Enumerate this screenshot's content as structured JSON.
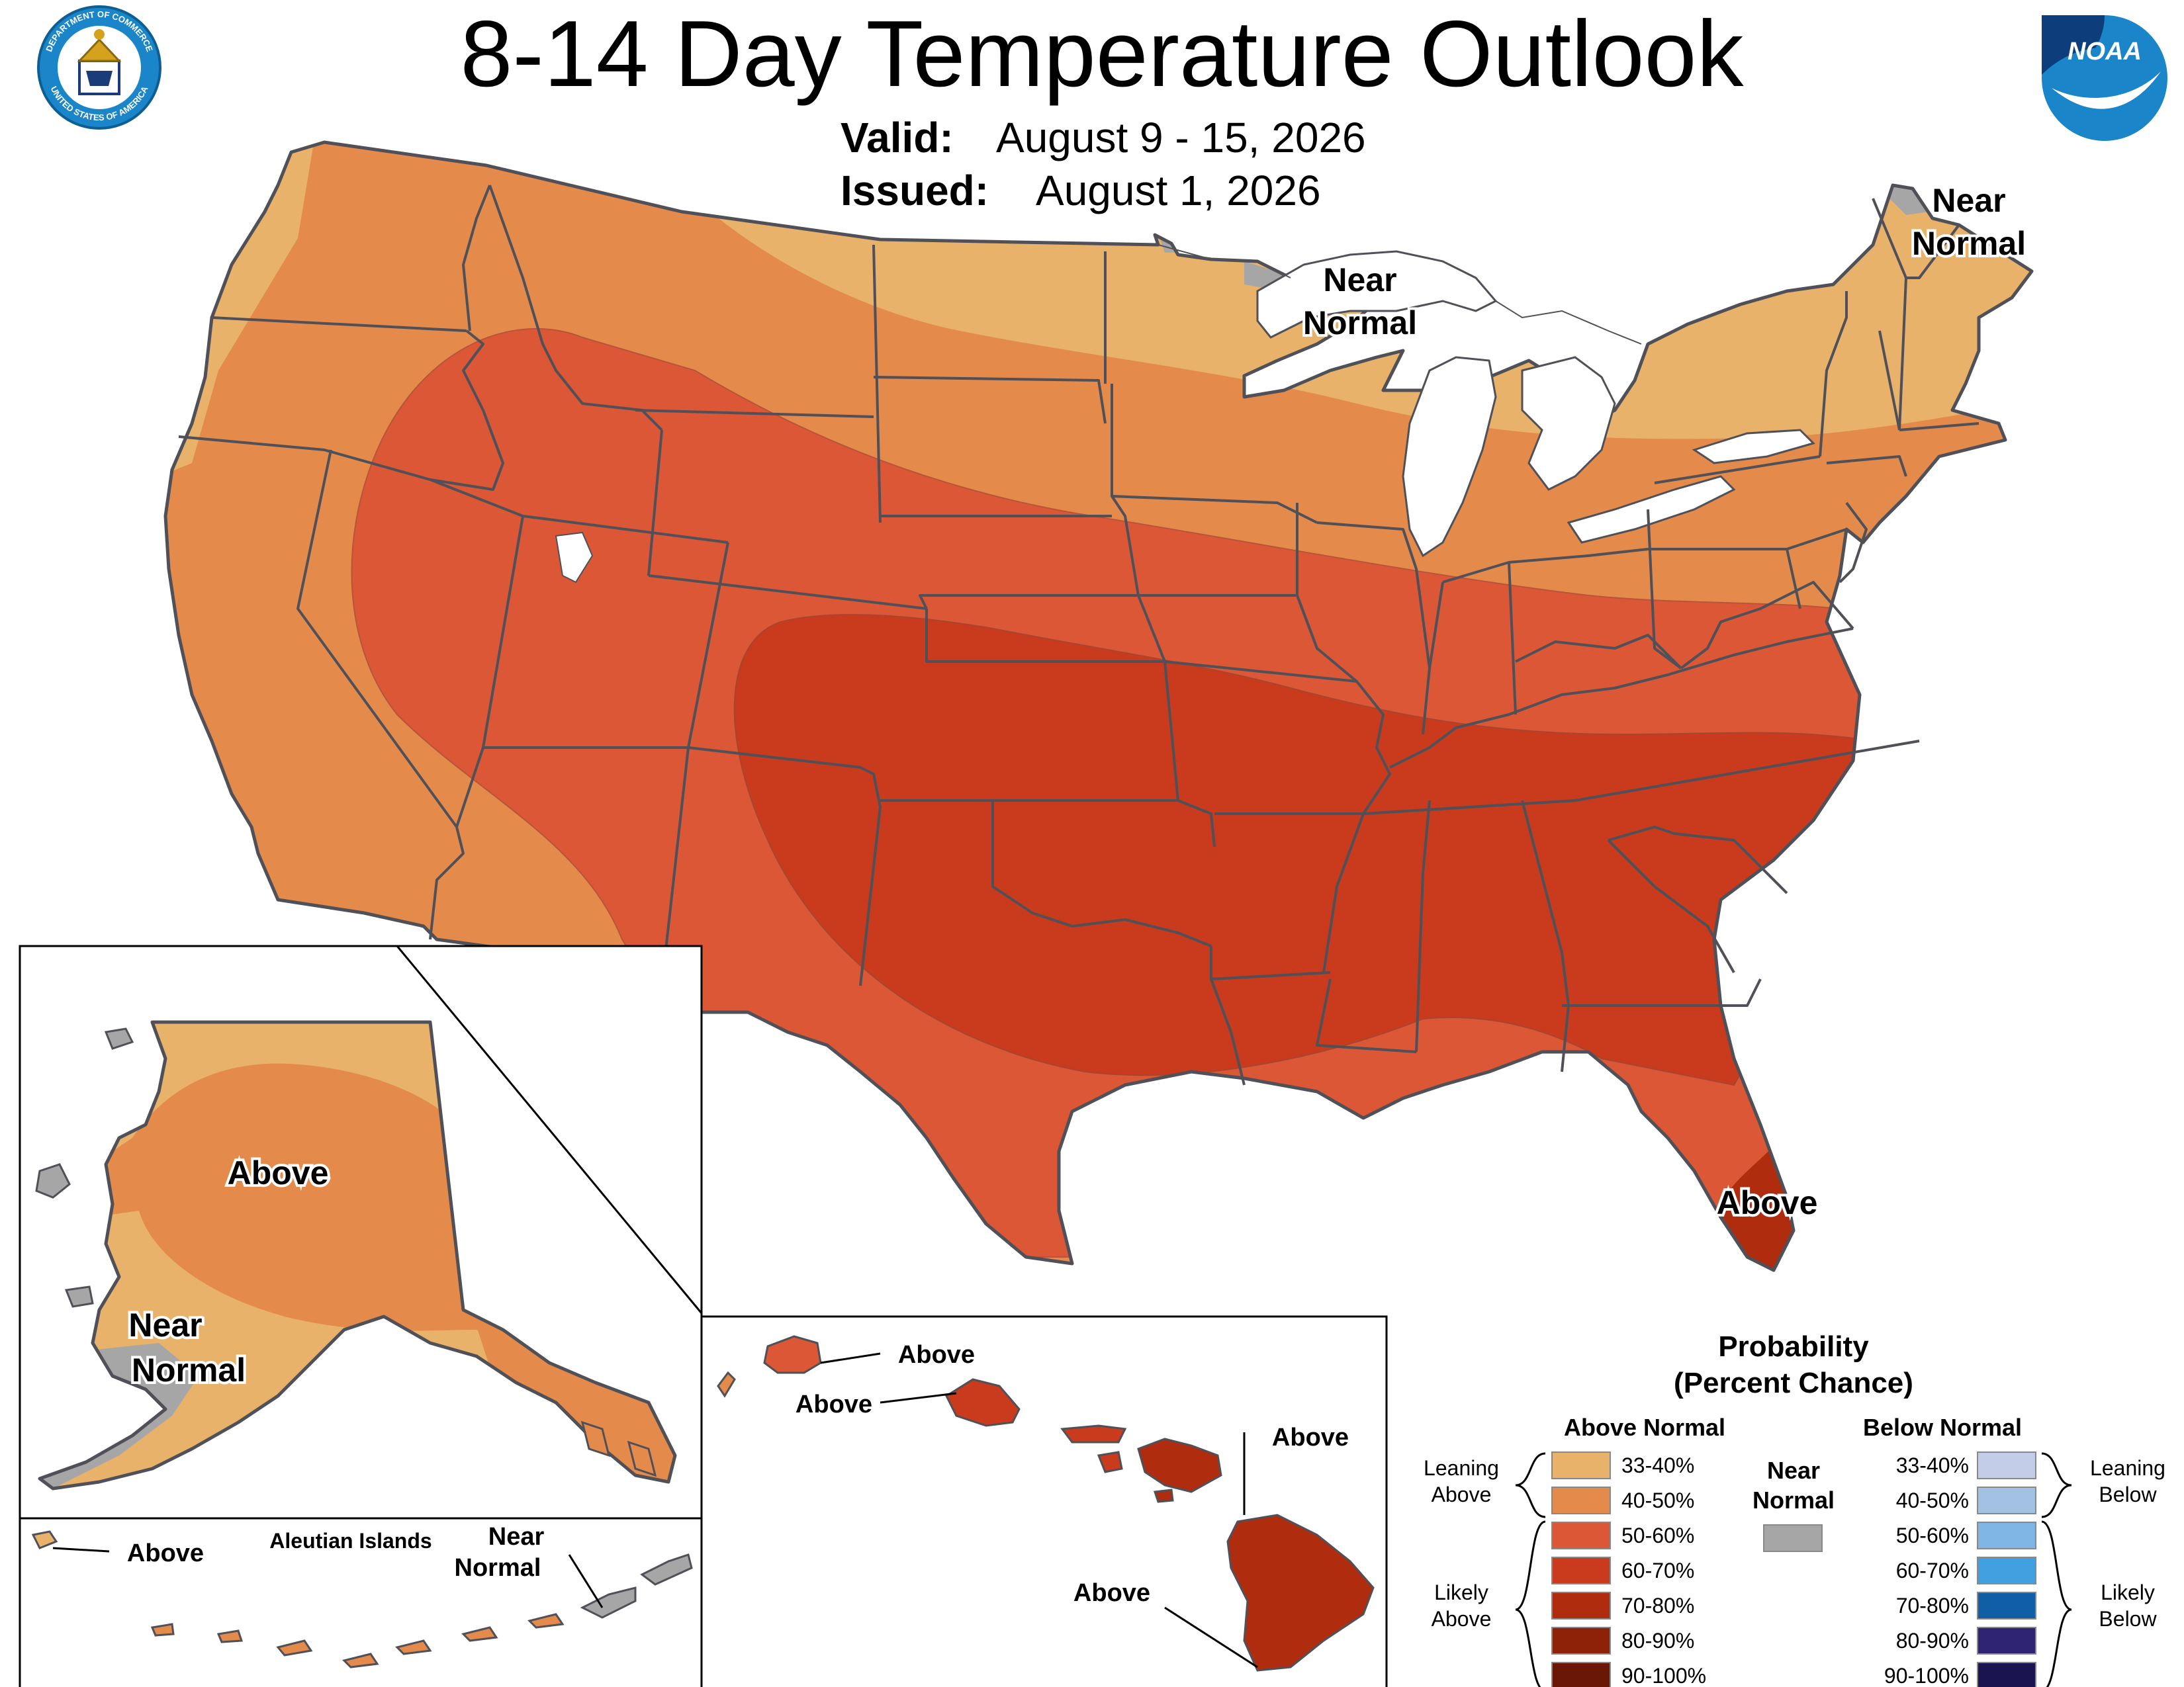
{
  "header": {
    "title": "8-14 Day Temperature Outlook",
    "valid_label": "Valid:",
    "valid_value": "August 9 - 15, 2026",
    "issued_label": "Issued:",
    "issued_value": "August 1, 2026"
  },
  "logos": {
    "doc_seal": "department-of-commerce-seal",
    "doc_ring_top": "DEPARTMENT OF COMMERCE",
    "doc_ring_bottom": "UNITED STATES OF AMERICA",
    "noaa_text": "NOAA"
  },
  "map_labels": {
    "conus_near_normal_great_lakes": [
      "Near",
      "Normal"
    ],
    "conus_near_normal_northeast": [
      "Near",
      "Normal"
    ],
    "conus_above_florida": "Above",
    "alaska_above": "Above",
    "alaska_near_normal": [
      "Near",
      "Normal"
    ],
    "aleutian_above": "Above",
    "aleutian_title": "Aleutian Islands",
    "aleutian_near_normal": [
      "Near",
      "Normal"
    ],
    "hawaii_kauai": "Above",
    "hawaii_oahu": "Above",
    "hawaii_maui": "Above",
    "hawaii_big_island": "Above"
  },
  "legend": {
    "title_line1": "Probability",
    "title_line2": "(Percent Chance)",
    "above_header": "Above Normal",
    "below_header": "Below Normal",
    "near_header_line1": "Near",
    "near_header_line2": "Normal",
    "leaning_above": [
      "Leaning",
      "Above"
    ],
    "likely_above": [
      "Likely",
      "Above"
    ],
    "leaning_below": [
      "Leaning",
      "Below"
    ],
    "likely_below": [
      "Likely",
      "Below"
    ],
    "above_bins": [
      {
        "range": "33-40%",
        "color": "#e8b26a"
      },
      {
        "range": "40-50%",
        "color": "#e48b4b"
      },
      {
        "range": "50-60%",
        "color": "#db5735"
      },
      {
        "range": "60-70%",
        "color": "#c93b1c"
      },
      {
        "range": "70-80%",
        "color": "#b02c0e"
      },
      {
        "range": "80-90%",
        "color": "#8d2208"
      },
      {
        "range": "90-100%",
        "color": "#6a1805"
      }
    ],
    "near_color": "#a6a6a6",
    "below_bins": [
      {
        "range": "33-40%",
        "color": "#c3cde7"
      },
      {
        "range": "40-50%",
        "color": "#a3c2e3"
      },
      {
        "range": "50-60%",
        "color": "#7fb6e6"
      },
      {
        "range": "60-70%",
        "color": "#42a0e0"
      },
      {
        "range": "70-80%",
        "color": "#0f5ea6"
      },
      {
        "range": "80-90%",
        "color": "#2f2473"
      },
      {
        "range": "90-100%",
        "color": "#1a1550"
      }
    ]
  }
}
